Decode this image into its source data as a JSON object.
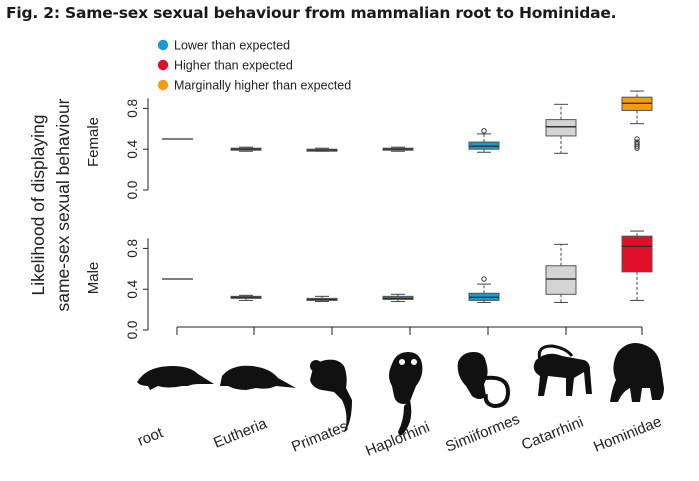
{
  "figure": {
    "title": "Fig. 2: Same-sex sexual behaviour from mammalian root to Hominidae."
  },
  "colors": {
    "lower": "#1a9bcd",
    "higher": "#e00f2a",
    "marginal": "#f39c12",
    "neutral": "#d4d4d4",
    "root": "#333333"
  },
  "chart_data": {
    "type": "box",
    "ylabel": [
      "Likelihood of displaying",
      "same-sex sexual behaviour"
    ],
    "categories": [
      "root",
      "Eutheria",
      "Primates",
      "Haplorhini",
      "Simiiformes",
      "Catarrhini",
      "Hominidae"
    ],
    "ylim": [
      0,
      1
    ],
    "yticks": [
      "0.0",
      "0.4",
      "0.8"
    ],
    "legend": {
      "position": "top",
      "entries": [
        {
          "label": "Lower than expected",
          "color_key": "lower"
        },
        {
          "label": "Higher than expected",
          "color_key": "higher"
        },
        {
          "label": "Marginally higher than expected",
          "color_key": "marginal"
        }
      ]
    },
    "panels": [
      {
        "label": "Female",
        "boxes": [
          {
            "category": "root",
            "kind": "line",
            "value": 0.5,
            "color_key": "root"
          },
          {
            "category": "Eutheria",
            "min": 0.38,
            "q1": 0.39,
            "median": 0.4,
            "q3": 0.41,
            "max": 0.42,
            "color_key": "neutral",
            "outliers": []
          },
          {
            "category": "Primates",
            "min": 0.38,
            "q1": 0.385,
            "median": 0.39,
            "q3": 0.4,
            "max": 0.41,
            "color_key": "neutral",
            "outliers": []
          },
          {
            "category": "Haplorhini",
            "min": 0.38,
            "q1": 0.39,
            "median": 0.4,
            "q3": 0.41,
            "max": 0.42,
            "color_key": "neutral",
            "outliers": []
          },
          {
            "category": "Simiiformes",
            "min": 0.37,
            "q1": 0.4,
            "median": 0.43,
            "q3": 0.47,
            "max": 0.55,
            "color_key": "lower",
            "outliers": [
              0.58
            ]
          },
          {
            "category": "Catarrhini",
            "min": 0.36,
            "q1": 0.53,
            "median": 0.62,
            "q3": 0.69,
            "max": 0.84,
            "color_key": "neutral",
            "outliers": []
          },
          {
            "category": "Hominidae",
            "min": 0.65,
            "q1": 0.78,
            "median": 0.85,
            "q3": 0.91,
            "max": 0.97,
            "color_key": "marginal",
            "outliers": [
              0.5,
              0.47,
              0.45,
              0.43,
              0.41
            ]
          }
        ]
      },
      {
        "label": "Male",
        "boxes": [
          {
            "category": "root",
            "kind": "line",
            "value": 0.5,
            "color_key": "root"
          },
          {
            "category": "Eutheria",
            "min": 0.29,
            "q1": 0.31,
            "median": 0.32,
            "q3": 0.33,
            "max": 0.34,
            "color_key": "neutral",
            "outliers": []
          },
          {
            "category": "Primates",
            "min": 0.28,
            "q1": 0.29,
            "median": 0.3,
            "q3": 0.31,
            "max": 0.33,
            "color_key": "neutral",
            "outliers": []
          },
          {
            "category": "Haplorhini",
            "min": 0.28,
            "q1": 0.3,
            "median": 0.31,
            "q3": 0.33,
            "max": 0.35,
            "color_key": "lower",
            "outliers": []
          },
          {
            "category": "Simiiformes",
            "min": 0.27,
            "q1": 0.29,
            "median": 0.32,
            "q3": 0.36,
            "max": 0.45,
            "color_key": "lower",
            "outliers": [
              0.5
            ]
          },
          {
            "category": "Catarrhini",
            "min": 0.27,
            "q1": 0.35,
            "median": 0.5,
            "q3": 0.63,
            "max": 0.84,
            "color_key": "neutral",
            "outliers": []
          },
          {
            "category": "Hominidae",
            "min": 0.29,
            "q1": 0.57,
            "median": 0.82,
            "q3": 0.92,
            "max": 0.97,
            "color_key": "higher",
            "outliers": []
          }
        ]
      }
    ],
    "silhouettes": [
      "root-animal-icon",
      "eutheria-animal-icon",
      "primates-animal-icon",
      "haplorhini-animal-icon",
      "simiiformes-animal-icon",
      "catarrhini-animal-icon",
      "hominidae-animal-icon"
    ]
  }
}
